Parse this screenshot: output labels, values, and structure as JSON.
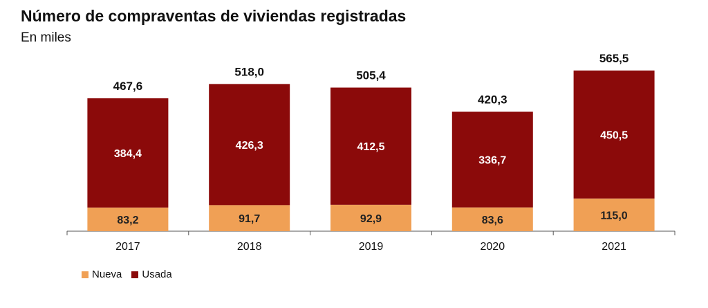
{
  "title": "Número de compraventas de viviendas registradas",
  "subtitle": "En miles",
  "colors": {
    "nueva": "#f0a055",
    "usada": "#8b0a0a",
    "axis": "#555555"
  },
  "chart_data": {
    "type": "bar",
    "stacked": true,
    "categories": [
      "2017",
      "2018",
      "2019",
      "2020",
      "2021"
    ],
    "series": [
      {
        "name": "Nueva",
        "values": [
          83.2,
          91.7,
          92.9,
          83.6,
          115.0
        ],
        "labels": [
          "83,2",
          "91,7",
          "92,9",
          "83,6",
          "115,0"
        ]
      },
      {
        "name": "Usada",
        "values": [
          384.4,
          426.3,
          412.5,
          336.7,
          450.5
        ],
        "labels": [
          "384,4",
          "426,3",
          "412,5",
          "336,7",
          "450,5"
        ]
      }
    ],
    "totals": [
      467.6,
      518.0,
      505.4,
      420.3,
      565.5
    ],
    "total_labels": [
      "467,6",
      "518,0",
      "505,4",
      "420,3",
      "565,5"
    ],
    "ylim": [
      0,
      640
    ],
    "legend": "bottom-left"
  }
}
